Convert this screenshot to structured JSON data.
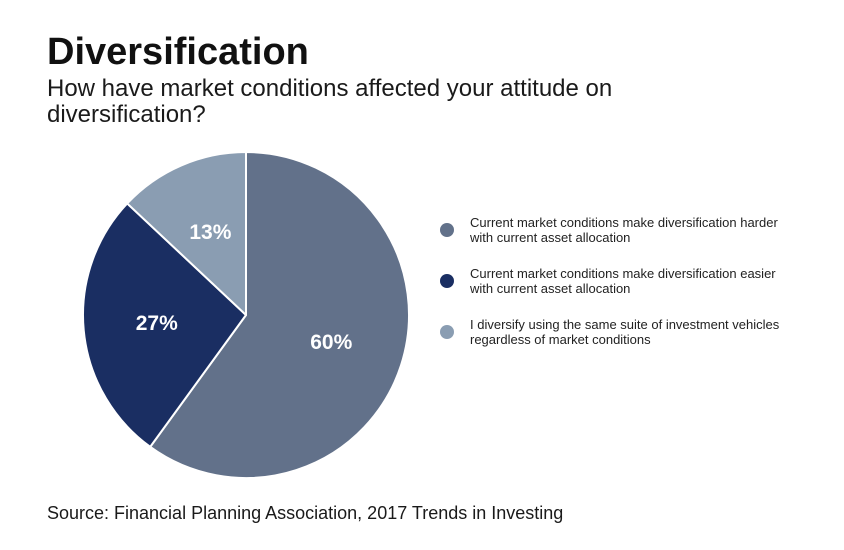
{
  "title": "Diversification",
  "subtitle": "How have market conditions affected your attitude on diversification?",
  "source": "Source: Financial Planning Association, 2017 Trends in Investing",
  "chart_data": {
    "type": "pie",
    "title": "Diversification",
    "unit": "%",
    "slices": [
      {
        "label": "Current market conditions make diversification harder with current asset allocation",
        "value": 60,
        "display": "60%",
        "color": "#62718a"
      },
      {
        "label": "Current market conditions make diversification easier with current asset allocation",
        "value": 27,
        "display": "27%",
        "color": "#1a2e62"
      },
      {
        "label": "I diversify using the same suite of investment vehicles regardless of market conditions",
        "value": 13,
        "display": "13%",
        "color": "#8a9db2"
      }
    ],
    "legend_position": "right"
  }
}
